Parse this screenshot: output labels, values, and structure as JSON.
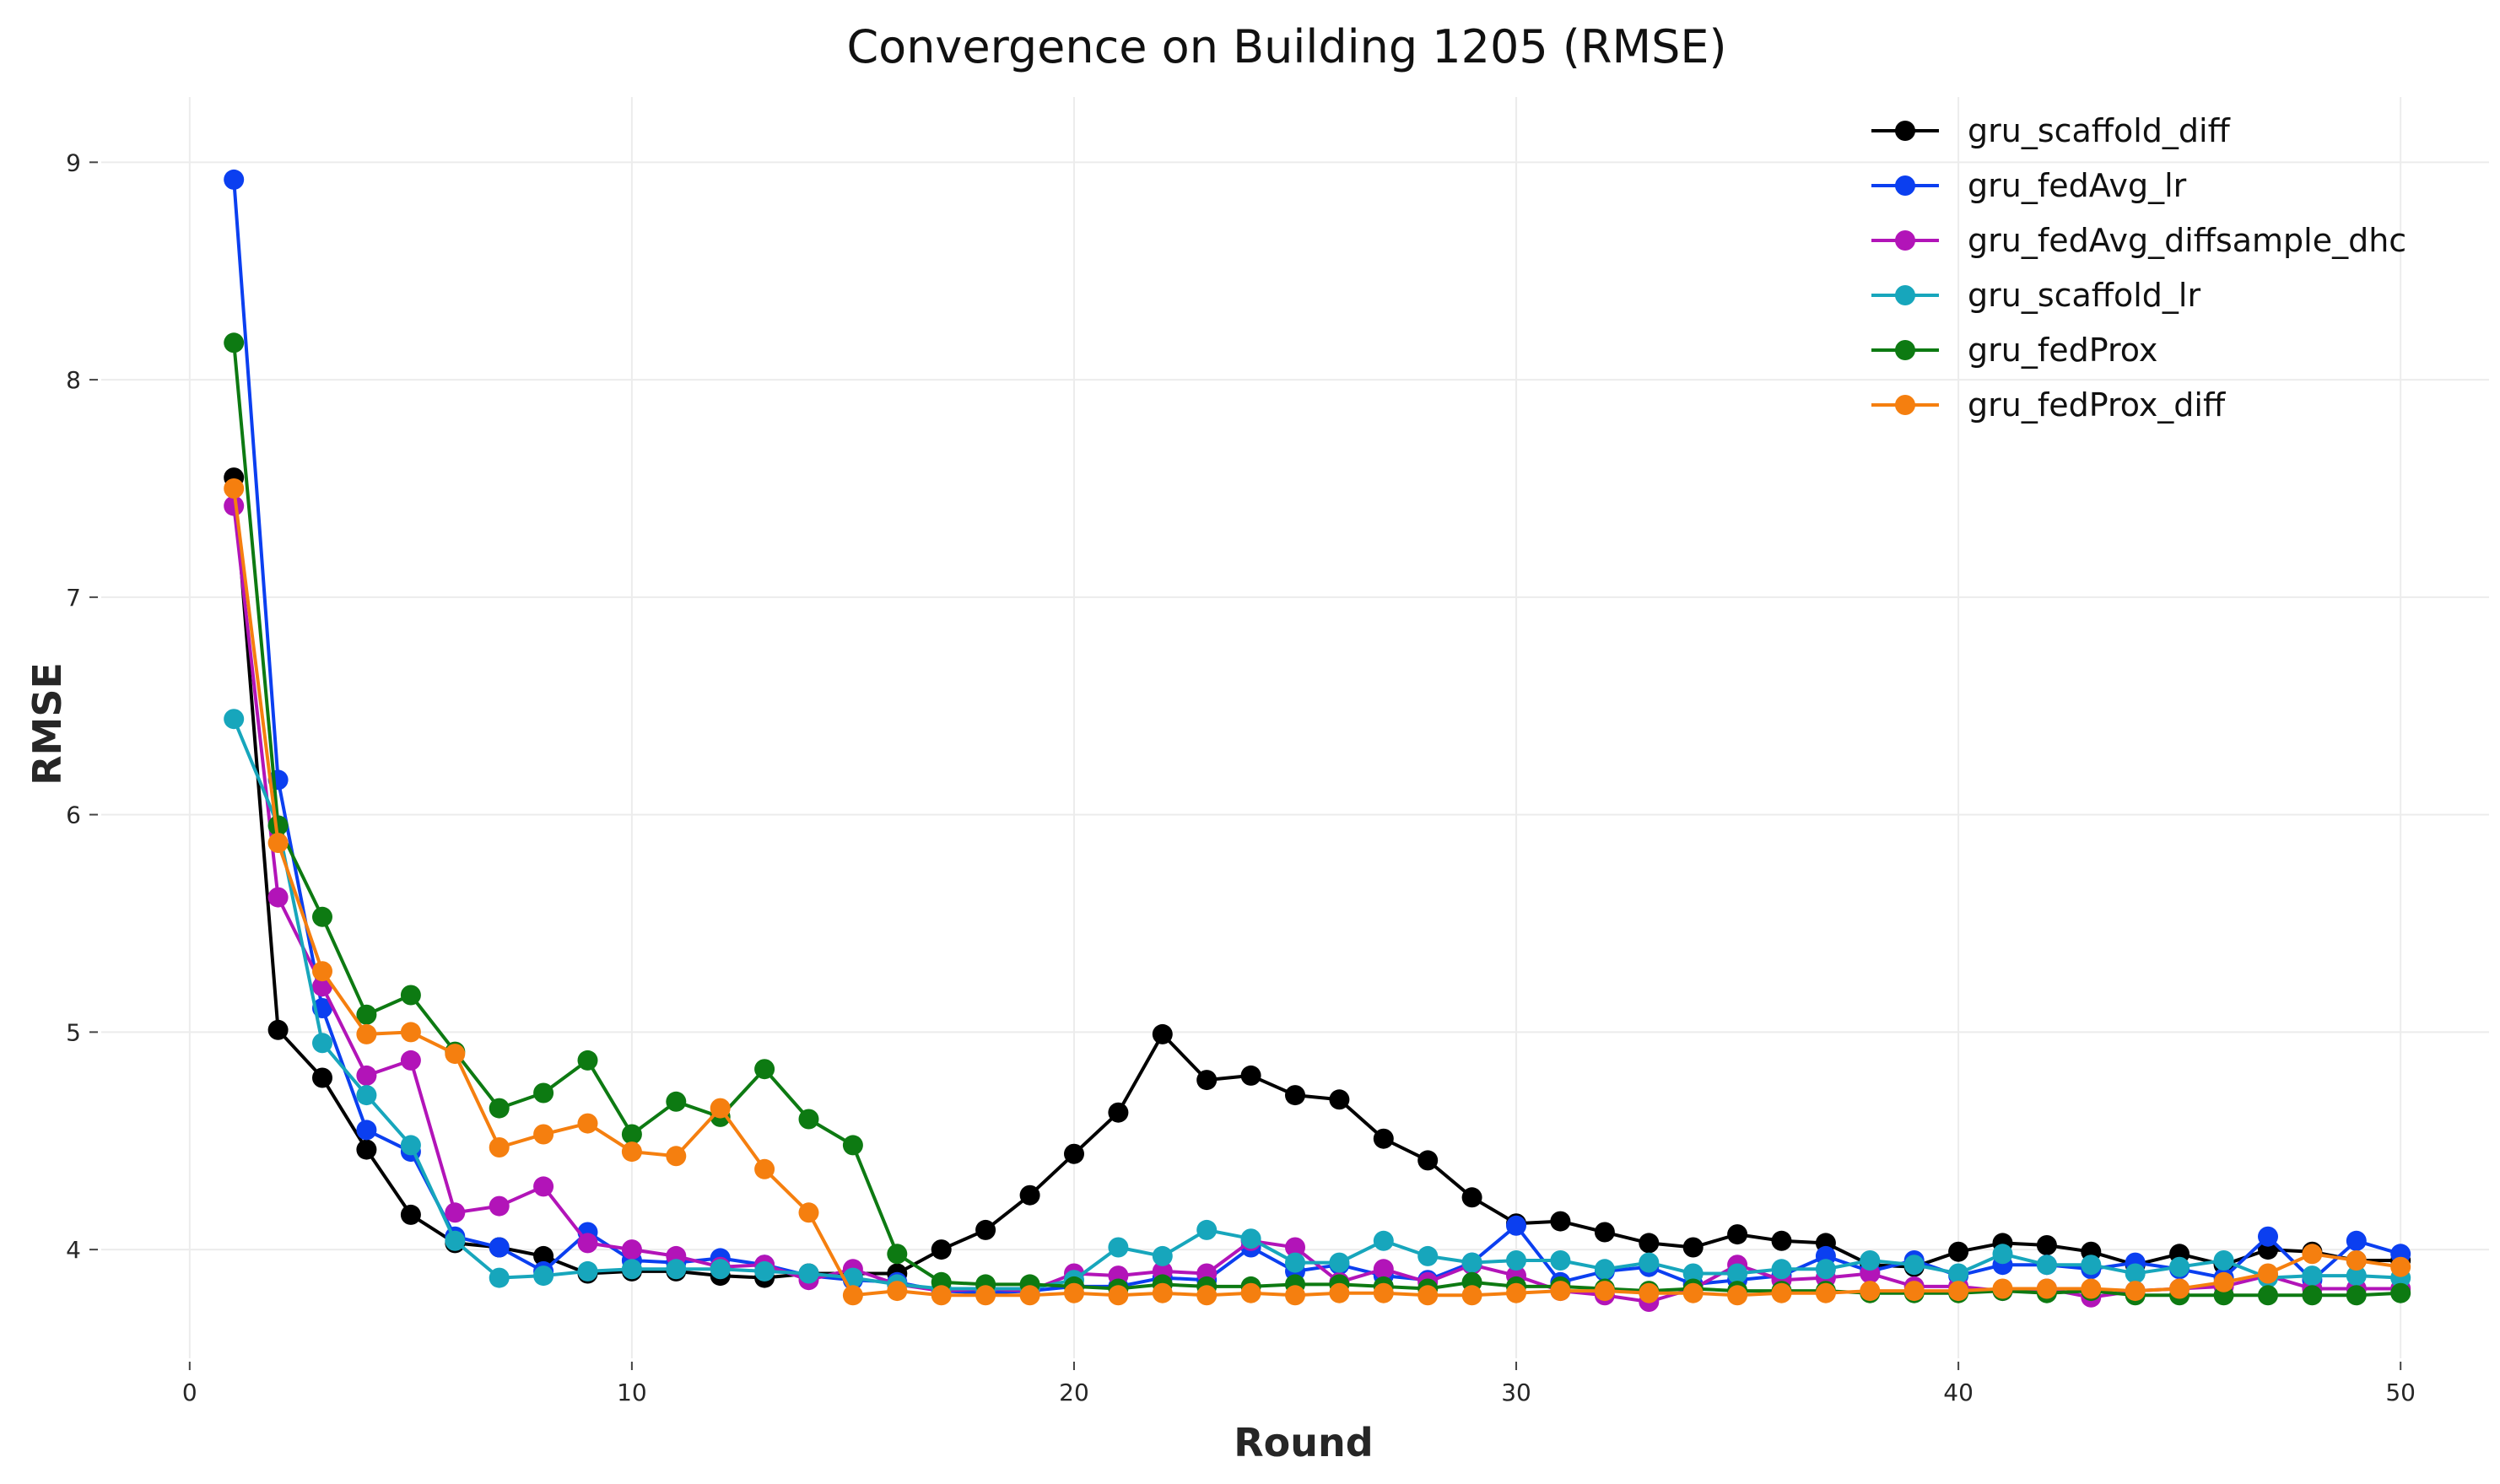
{
  "chart_data": {
    "type": "line",
    "title": "Convergence on Building 1205 (RMSE)",
    "xlabel": "Round",
    "ylabel": "RMSE",
    "xlim": [
      -2,
      52
    ],
    "ylim": [
      3.5,
      9.3
    ],
    "xticks": [
      0,
      10,
      20,
      30,
      40,
      50
    ],
    "yticks": [
      4,
      5,
      6,
      7,
      8,
      9
    ],
    "grid": true,
    "legend_position": "top-right",
    "x": [
      1,
      2,
      3,
      4,
      5,
      6,
      7,
      8,
      9,
      10,
      11,
      12,
      13,
      14,
      15,
      16,
      17,
      18,
      19,
      20,
      21,
      22,
      23,
      24,
      25,
      26,
      27,
      28,
      29,
      30,
      31,
      32,
      33,
      34,
      35,
      36,
      37,
      38,
      39,
      40,
      41,
      42,
      43,
      44,
      45,
      46,
      47,
      48,
      49,
      50
    ],
    "series": [
      {
        "name": "gru_scaffold_diff",
        "color": "#000000",
        "values": [
          7.55,
          5.01,
          4.79,
          4.46,
          4.16,
          4.03,
          4.01,
          3.97,
          3.89,
          3.9,
          3.9,
          3.88,
          3.87,
          3.89,
          3.89,
          3.89,
          4.0,
          4.09,
          4.25,
          4.44,
          4.63,
          4.99,
          4.78,
          4.8,
          4.71,
          4.69,
          4.51,
          4.41,
          4.24,
          4.12,
          4.13,
          4.08,
          4.03,
          4.01,
          4.07,
          4.04,
          4.03,
          3.93,
          3.92,
          3.99,
          4.03,
          4.02,
          3.99,
          3.93,
          3.98,
          3.93,
          4.0,
          3.99,
          3.95,
          3.95
        ]
      },
      {
        "name": "gru_fedAvg_lr",
        "color": "#0b3ff0",
        "values": [
          8.92,
          6.16,
          5.11,
          4.55,
          4.45,
          4.06,
          4.01,
          3.9,
          4.08,
          3.95,
          3.94,
          3.96,
          3.93,
          3.88,
          3.86,
          3.85,
          3.81,
          3.8,
          3.81,
          3.83,
          3.83,
          3.87,
          3.86,
          4.01,
          3.9,
          3.93,
          3.88,
          3.86,
          3.94,
          4.11,
          3.85,
          3.9,
          3.92,
          3.84,
          3.86,
          3.88,
          3.97,
          3.9,
          3.95,
          3.88,
          3.93,
          3.93,
          3.91,
          3.94,
          3.91,
          3.87,
          4.06,
          3.86,
          4.04,
          3.98
        ]
      },
      {
        "name": "gru_fedAvg_diffsample_dhc",
        "color": "#b214b8",
        "values": [
          7.42,
          5.62,
          5.21,
          4.8,
          4.87,
          4.17,
          4.2,
          4.29,
          4.03,
          4.0,
          3.97,
          3.92,
          3.93,
          3.86,
          3.91,
          3.84,
          3.81,
          3.82,
          3.81,
          3.89,
          3.88,
          3.9,
          3.89,
          4.04,
          4.01,
          3.85,
          3.91,
          3.85,
          3.93,
          3.88,
          3.81,
          3.79,
          3.76,
          3.82,
          3.93,
          3.86,
          3.87,
          3.89,
          3.83,
          3.83,
          3.81,
          3.82,
          3.78,
          3.81,
          3.82,
          3.83,
          3.88,
          3.82,
          3.82,
          3.82
        ]
      },
      {
        "name": "gru_scaffold_lr",
        "color": "#17a6bc",
        "values": [
          6.44,
          5.95,
          4.95,
          4.71,
          4.48,
          4.04,
          3.87,
          3.88,
          3.9,
          3.91,
          3.91,
          3.91,
          3.9,
          3.89,
          3.87,
          3.84,
          3.82,
          3.82,
          3.82,
          3.86,
          4.01,
          3.97,
          4.09,
          4.05,
          3.94,
          3.94,
          4.04,
          3.97,
          3.94,
          3.95,
          3.95,
          3.91,
          3.94,
          3.89,
          3.89,
          3.91,
          3.91,
          3.95,
          3.93,
          3.89,
          3.98,
          3.93,
          3.93,
          3.89,
          3.92,
          3.95,
          3.87,
          3.88,
          3.88,
          3.87
        ]
      },
      {
        "name": "gru_fedProx",
        "color": "#0d7a12",
        "values": [
          8.17,
          5.95,
          5.53,
          5.08,
          5.17,
          4.91,
          4.65,
          4.72,
          4.87,
          4.53,
          4.68,
          4.61,
          4.83,
          4.6,
          4.48,
          3.98,
          3.85,
          3.84,
          3.84,
          3.83,
          3.82,
          3.84,
          3.83,
          3.83,
          3.84,
          3.84,
          3.83,
          3.82,
          3.85,
          3.83,
          3.83,
          3.82,
          3.81,
          3.82,
          3.81,
          3.81,
          3.81,
          3.8,
          3.8,
          3.8,
          3.81,
          3.8,
          3.81,
          3.79,
          3.79,
          3.79,
          3.79,
          3.79,
          3.79,
          3.8
        ]
      },
      {
        "name": "gru_fedProx_diff",
        "color": "#f57f0f",
        "values": [
          7.5,
          5.87,
          5.28,
          4.99,
          5.0,
          4.9,
          4.47,
          4.53,
          4.58,
          4.45,
          4.43,
          4.65,
          4.37,
          4.17,
          3.79,
          3.81,
          3.79,
          3.79,
          3.79,
          3.8,
          3.79,
          3.8,
          3.79,
          3.8,
          3.79,
          3.8,
          3.8,
          3.79,
          3.79,
          3.8,
          3.81,
          3.81,
          3.8,
          3.8,
          3.79,
          3.8,
          3.8,
          3.81,
          3.81,
          3.81,
          3.82,
          3.82,
          3.82,
          3.81,
          3.82,
          3.85,
          3.89,
          3.98,
          3.95,
          3.92
        ]
      }
    ]
  }
}
